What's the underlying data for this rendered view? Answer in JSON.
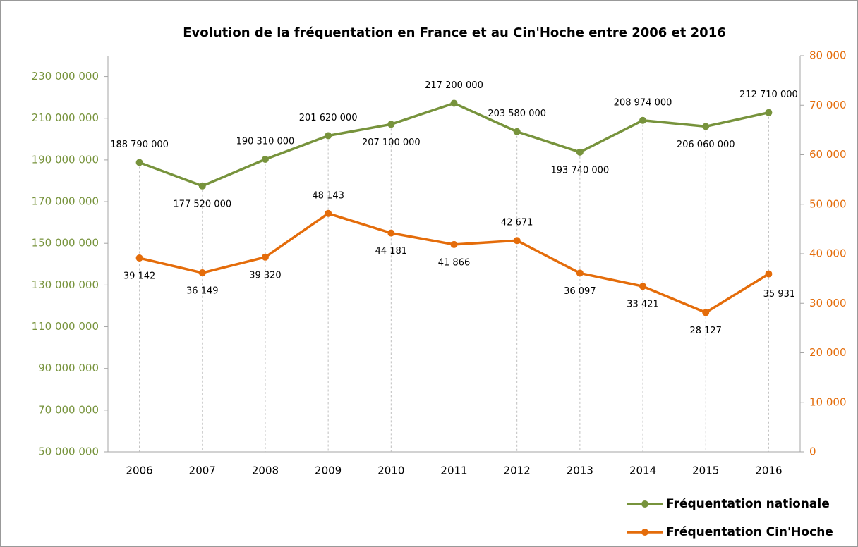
{
  "chart_data": {
    "type": "line",
    "title": "Evolution de la fréquentation en France et au Cin'Hoche entre 2006 et 2016",
    "categories": [
      "2006",
      "2007",
      "2008",
      "2009",
      "2010",
      "2011",
      "2012",
      "2013",
      "2014",
      "2015",
      "2016"
    ],
    "series": [
      {
        "name": "Fréquentation nationale",
        "color": "#77933c",
        "values": [
          188790000,
          177520000,
          190310000,
          201620000,
          207100000,
          217200000,
          203580000,
          193740000,
          208974000,
          206060000,
          212710000
        ],
        "value_labels": [
          "188 790 000",
          "177 520 000",
          "190 310 000",
          "201 620 000",
          "207 100 000",
          "217 200 000",
          "203 580 000",
          "193 740 000",
          "208 974 000",
          "206 060 000",
          "212 710 000"
        ]
      },
      {
        "name": "Fréquentation Cin'Hoche",
        "color": "#e46c0a",
        "axis": "y2",
        "values": [
          39142,
          36149,
          39320,
          48143,
          44181,
          41866,
          42671,
          36097,
          33421,
          28127,
          35931
        ],
        "value_labels": [
          "39 142",
          "36 149",
          "39 320",
          "48 143",
          "44 181",
          "41 866",
          "42 671",
          "36 097",
          "33 421",
          "28 127",
          "35 931"
        ]
      }
    ],
    "ylim": [
      50000000,
      240000000
    ],
    "yticks": [
      {
        "value": 50000000,
        "label": "50 000 000"
      },
      {
        "value": 70000000,
        "label": "70 000 000"
      },
      {
        "value": 90000000,
        "label": "90 000 000"
      },
      {
        "value": 110000000,
        "label": "110 000 000"
      },
      {
        "value": 130000000,
        "label": "130 000 000"
      },
      {
        "value": 150000000,
        "label": "150 000 000"
      },
      {
        "value": 170000000,
        "label": "170 000 000"
      },
      {
        "value": 190000000,
        "label": "190 000 000"
      },
      {
        "value": 210000000,
        "label": "210 000 000"
      },
      {
        "value": 230000000,
        "label": "230 000 000"
      }
    ],
    "y2lim": [
      0,
      80000
    ],
    "y2ticks": [
      0,
      {
        "value": 10000,
        "label": "10 000"
      },
      {
        "value": 20000,
        "label": "20 000"
      },
      {
        "value": 30000,
        "label": "30 000"
      },
      {
        "value": 40000,
        "label": "40 000"
      },
      {
        "value": 50000,
        "label": "50 000"
      },
      {
        "value": 60000,
        "label": "60 000"
      },
      {
        "value": 70000,
        "label": "70 000"
      },
      {
        "value": 80000,
        "label": "80 000"
      }
    ],
    "legend": "bottom-right"
  }
}
